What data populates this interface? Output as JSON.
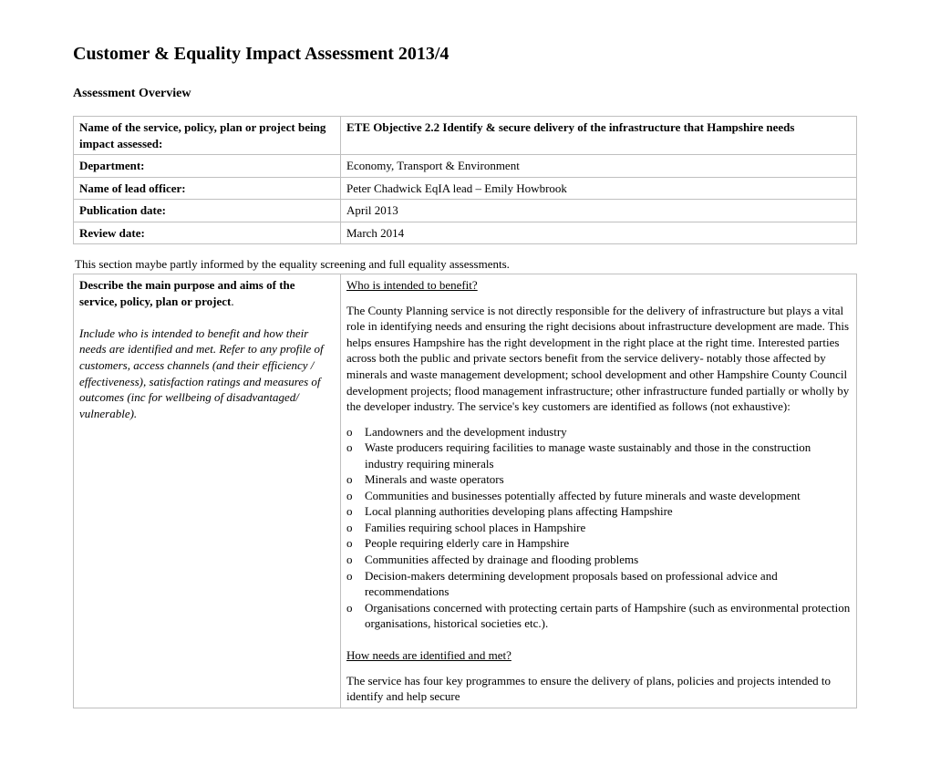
{
  "title": "Customer & Equality Impact Assessment 2013/4",
  "subtitle": "Assessment Overview",
  "overview": {
    "rows": [
      {
        "label": "Name of the service, policy, plan or project being impact assessed:",
        "value": "ETE Objective 2.2 Identify & secure delivery of the infrastructure that Hampshire needs",
        "value_bold": true
      },
      {
        "label": "Department:",
        "value": "Economy, Transport & Environment",
        "value_bold": false
      },
      {
        "label": "Name of lead officer:",
        "value": "Peter Chadwick    EqIA lead –  Emily Howbrook",
        "value_bold": false
      },
      {
        "label": "Publication date:",
        "value": "April 2013",
        "value_bold": false
      },
      {
        "label": "Review date:",
        "value": "March 2014",
        "value_bold": false
      }
    ]
  },
  "section_note": "This section maybe partly informed by the equality screening and full equality assessments.",
  "describe": {
    "label_bold": "Describe the main purpose and aims of the service, policy, plan or project",
    "label_tail": ".",
    "label_italic": "Include who is intended to benefit and how their needs are identified and met. Refer to any profile of customers, access channels (and their efficiency / effectiveness), satisfaction ratings and measures of outcomes (inc for wellbeing of disadvantaged/ vulnerable).",
    "q1": "Who is intended to benefit?",
    "para1": "The County Planning service is not directly responsible for the delivery of infrastructure but plays a vital role in identifying needs and ensuring the right decisions about infrastructure development are made.  This helps ensures Hampshire has the right development in the right place at the right time.  Interested parties across both the public and private sectors benefit from the service delivery- notably those affected by minerals and waste management development; school development and other Hampshire County Council development projects; flood management infrastructure; other infrastructure funded partially or wholly by the developer industry.  The service's key customers are identified as follows (not exhaustive):",
    "bullets": [
      "Landowners and the development industry",
      "Waste producers requiring facilities to manage waste sustainably and those in the construction industry requiring minerals",
      "Minerals and waste operators",
      "Communities and businesses potentially affected by future minerals and waste development",
      "Local planning authorities developing plans affecting Hampshire",
      "Families requiring school places in Hampshire",
      "People requiring elderly care in Hampshire",
      "Communities affected by drainage and flooding problems",
      "Decision-makers determining development proposals based on professional advice and recommendations",
      "Organisations concerned with protecting certain parts of Hampshire (such as environmental protection organisations, historical societies etc.)."
    ],
    "q2": "How needs are identified and met?",
    "para2": "The service has four key programmes to ensure the delivery of plans, policies and  projects intended to identify and help secure"
  }
}
